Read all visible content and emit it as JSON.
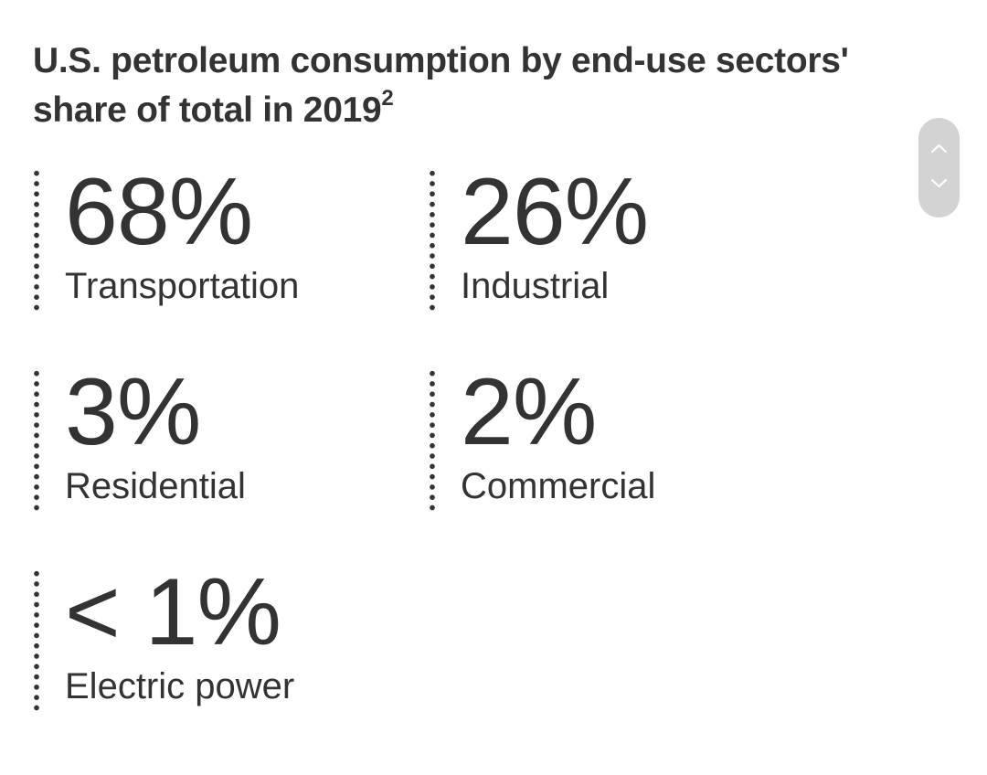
{
  "header": {
    "title": "U.S. petroleum consumption by end-use sectors' share of total in 2019",
    "footnote": "2"
  },
  "stats": [
    {
      "value": "68%",
      "label": "Transportation"
    },
    {
      "value": "26%",
      "label": "Industrial"
    },
    {
      "value": "3%",
      "label": "Residential"
    },
    {
      "value": "2%",
      "label": "Commercial"
    },
    {
      "value": "< 1%",
      "label": "Electric power"
    }
  ],
  "scroll_widget": {
    "up_icon": "chevron-up-icon",
    "down_icon": "chevron-down-icon",
    "background": "#d3d3d3",
    "icon_color": "#ffffff"
  },
  "colors": {
    "text": "#333333",
    "background": "#ffffff"
  }
}
